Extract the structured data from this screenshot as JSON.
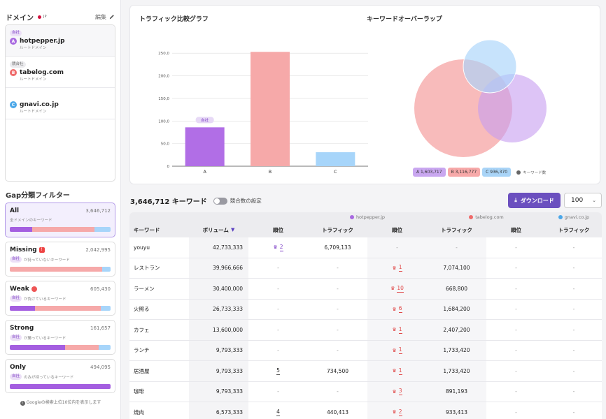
{
  "sidebar": {
    "title": "ドメイン",
    "flag_text": "JP",
    "edit_label": "編集",
    "domains": [
      {
        "badge": "自社",
        "letter": "A",
        "name": "hotpepper.jp",
        "sub": "ルートドメイン",
        "color": "#a869e0"
      },
      {
        "badge": "競合社",
        "letter": "B",
        "name": "tabelog.com",
        "sub": "ルートドメイン",
        "color": "#ef6a6a"
      },
      {
        "badge": "",
        "letter": "C",
        "name": "gnavi.co.jp",
        "sub": "ルートドメイン",
        "color": "#4ba7e8"
      }
    ],
    "gap_title": "Gap分類フィルター",
    "gap_filters": [
      {
        "name": "All",
        "icon": "",
        "count": "3,646,712",
        "sub_badge": "",
        "sub": "全ドメインのキーワード",
        "bar": [
          0.22,
          0.62,
          0.16
        ]
      },
      {
        "name": "Missing",
        "icon": "warning-icon",
        "count": "2,042,995",
        "sub_badge": "自社",
        "sub": "が持っていないキーワード",
        "bar": [
          0,
          0.92,
          0.08
        ]
      },
      {
        "name": "Weak",
        "icon": "weak-icon",
        "count": "605,430",
        "sub_badge": "自社",
        "sub": "が負けているキーワード",
        "bar": [
          0.25,
          0.65,
          0.1
        ]
      },
      {
        "name": "Strong",
        "icon": "",
        "count": "161,657",
        "sub_badge": "自社",
        "sub": "が勝っているキーワード",
        "bar": [
          0.55,
          0.33,
          0.12
        ]
      },
      {
        "name": "Only",
        "icon": "",
        "count": "494,095",
        "sub_badge": "自社",
        "sub": "のみが持っているキーワード",
        "bar": [
          1.0,
          0,
          0
        ]
      }
    ],
    "note": "Googleの検索上位10位内を表示します"
  },
  "traffic_chart": {
    "title": "トラフィック比較グラフ",
    "own_badge": "自社"
  },
  "venn": {
    "title": "キーワードオーバーラップ",
    "legend": [
      {
        "label": "A",
        "value": "1,603,717",
        "color": "#c9a7f0"
      },
      {
        "label": "B",
        "value": "3,116,777",
        "color": "#f7a9a9"
      },
      {
        "label": "C",
        "value": "936,370",
        "color": "#a9d4f7"
      }
    ],
    "legend_note": "キーワード数"
  },
  "chart_data": {
    "type": "bar",
    "categories": [
      "A",
      "B",
      "C"
    ],
    "values": [
      86,
      253,
      31
    ],
    "ylim": [
      0,
      275
    ],
    "yticks": [
      "0",
      "50,0",
      "100,0",
      "150,0",
      "200,0",
      "250,0"
    ],
    "colors": [
      "#b16ee6",
      "#f6a9a9",
      "#a7d5fa"
    ]
  },
  "table": {
    "keyword_count": "3,646,712 キーワード",
    "toggle_label": "競合数の設定",
    "download_label": "ダウンロード",
    "page_size": "100",
    "domain_headers": [
      {
        "name": "hotpepper.jp",
        "color": "#a869e0"
      },
      {
        "name": "tabelog.com",
        "color": "#ef6a6a"
      },
      {
        "name": "gnavi.co.jp",
        "color": "#4ba7e8"
      }
    ],
    "headers": [
      "キーワード",
      "ボリューム",
      "順位",
      "トラフィック",
      "順位",
      "トラフィック",
      "順位",
      "トラフィック"
    ],
    "rows": [
      {
        "kw": "youyu",
        "vol": "42,733,333",
        "a_rank": "2",
        "a_traffic": "6,709,133",
        "b_rank": "-",
        "b_traffic": "-",
        "c_rank": "-",
        "c_traffic": "-",
        "a_crown": true,
        "b_crown": false
      },
      {
        "kw": "レストラン",
        "vol": "39,966,666",
        "a_rank": "-",
        "a_traffic": "-",
        "b_rank": "1",
        "b_traffic": "7,074,100",
        "c_rank": "-",
        "c_traffic": "-",
        "a_crown": false,
        "b_crown": true
      },
      {
        "kw": "ラーメン",
        "vol": "30,400,000",
        "a_rank": "-",
        "a_traffic": "-",
        "b_rank": "10",
        "b_traffic": "668,800",
        "c_rank": "-",
        "c_traffic": "-",
        "a_crown": false,
        "b_crown": true
      },
      {
        "kw": "火照る",
        "vol": "26,733,333",
        "a_rank": "-",
        "a_traffic": "-",
        "b_rank": "6",
        "b_traffic": "1,684,200",
        "c_rank": "-",
        "c_traffic": "-",
        "a_crown": false,
        "b_crown": true
      },
      {
        "kw": "カフェ",
        "vol": "13,600,000",
        "a_rank": "-",
        "a_traffic": "-",
        "b_rank": "1",
        "b_traffic": "2,407,200",
        "c_rank": "-",
        "c_traffic": "-",
        "a_crown": false,
        "b_crown": true
      },
      {
        "kw": "ランチ",
        "vol": "9,793,333",
        "a_rank": "-",
        "a_traffic": "-",
        "b_rank": "1",
        "b_traffic": "1,733,420",
        "c_rank": "-",
        "c_traffic": "-",
        "a_crown": false,
        "b_crown": true
      },
      {
        "kw": "居酒屋",
        "vol": "9,793,333",
        "a_rank": "5",
        "a_traffic": "734,500",
        "b_rank": "1",
        "b_traffic": "1,733,420",
        "c_rank": "-",
        "c_traffic": "-",
        "a_crown": false,
        "b_crown": true
      },
      {
        "kw": "珈琲",
        "vol": "9,793,333",
        "a_rank": "-",
        "a_traffic": "-",
        "b_rank": "3",
        "b_traffic": "891,193",
        "c_rank": "-",
        "c_traffic": "-",
        "a_crown": false,
        "b_crown": true
      },
      {
        "kw": "焼肉",
        "vol": "6,573,333",
        "a_rank": "4",
        "a_traffic": "440,413",
        "b_rank": "2",
        "b_traffic": "933,413",
        "c_rank": "-",
        "c_traffic": "-",
        "a_crown": false,
        "b_crown": true
      }
    ]
  }
}
